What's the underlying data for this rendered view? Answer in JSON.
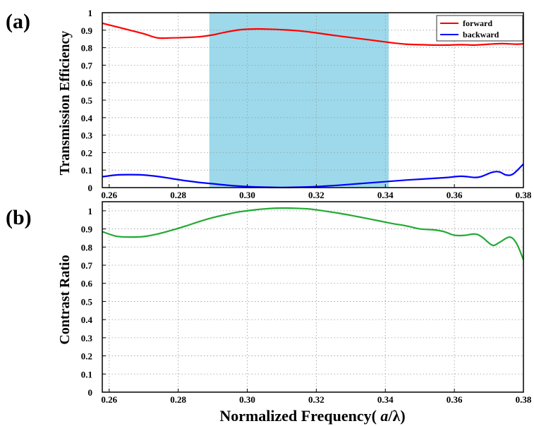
{
  "chart_data": [
    {
      "type": "line",
      "panel_label": "(a)",
      "title": "",
      "xlabel": "",
      "ylabel": "Transmission Efficiency",
      "xlim": [
        0.258,
        0.38
      ],
      "ylim": [
        0,
        1
      ],
      "grid": true,
      "legend": "top-right",
      "xticks": [
        0.26,
        0.28,
        0.3,
        0.32,
        0.34,
        0.36,
        0.38
      ],
      "xtick_labels": [
        "0.26",
        "0.28",
        "0.30",
        "0.32",
        "0.34",
        "0.36",
        "0.38"
      ],
      "yticks": [
        0,
        0.1,
        0.2,
        0.3,
        0.4,
        0.5,
        0.6,
        0.7,
        0.8,
        0.9,
        1
      ],
      "ytick_labels": [
        "0",
        "0.1",
        "0.2",
        "0.3",
        "0.4",
        "0.5",
        "0.6",
        "0.7",
        "0.8",
        "0.9",
        "1"
      ],
      "shaded_band": {
        "x_start": 0.289,
        "x_end": 0.341,
        "color": "#9dd9ea"
      },
      "series": [
        {
          "name": "forward",
          "color": "#ff0000",
          "x": [
            0.258,
            0.262,
            0.266,
            0.27,
            0.274,
            0.278,
            0.282,
            0.286,
            0.29,
            0.294,
            0.298,
            0.302,
            0.306,
            0.31,
            0.314,
            0.318,
            0.322,
            0.326,
            0.33,
            0.334,
            0.338,
            0.342,
            0.346,
            0.35,
            0.354,
            0.358,
            0.362,
            0.366,
            0.37,
            0.374,
            0.378,
            0.38
          ],
          "y": [
            0.94,
            0.92,
            0.9,
            0.88,
            0.856,
            0.856,
            0.858,
            0.862,
            0.873,
            0.89,
            0.903,
            0.907,
            0.906,
            0.903,
            0.898,
            0.89,
            0.879,
            0.868,
            0.858,
            0.848,
            0.838,
            0.828,
            0.82,
            0.817,
            0.815,
            0.815,
            0.817,
            0.815,
            0.82,
            0.823,
            0.82,
            0.822
          ]
        },
        {
          "name": "backward",
          "color": "#0000ff",
          "x": [
            0.258,
            0.262,
            0.266,
            0.27,
            0.274,
            0.278,
            0.282,
            0.286,
            0.29,
            0.294,
            0.298,
            0.302,
            0.306,
            0.31,
            0.314,
            0.318,
            0.322,
            0.326,
            0.33,
            0.334,
            0.338,
            0.342,
            0.346,
            0.35,
            0.354,
            0.358,
            0.362,
            0.366,
            0.368,
            0.371,
            0.373,
            0.375,
            0.377,
            0.38
          ],
          "y": [
            0.062,
            0.072,
            0.074,
            0.072,
            0.064,
            0.052,
            0.04,
            0.03,
            0.022,
            0.014,
            0.008,
            0.004,
            0.002,
            0.001,
            0.002,
            0.004,
            0.008,
            0.013,
            0.019,
            0.025,
            0.031,
            0.037,
            0.043,
            0.048,
            0.053,
            0.058,
            0.065,
            0.058,
            0.065,
            0.088,
            0.09,
            0.072,
            0.078,
            0.135
          ]
        }
      ]
    },
    {
      "type": "line",
      "panel_label": "(b)",
      "title": "",
      "xlabel": "Normalized Frequency(a/λ)",
      "ylabel": "Contrast Ratio",
      "xlim": [
        0.258,
        0.38
      ],
      "ylim": [
        0,
        1.05
      ],
      "grid": true,
      "legend": "none",
      "xticks": [
        0.26,
        0.28,
        0.3,
        0.32,
        0.34,
        0.36,
        0.38
      ],
      "xtick_labels": [
        "0.26",
        "0.28",
        "0.30",
        "0.32",
        "0.34",
        "0.36",
        "0.38"
      ],
      "yticks": [
        0,
        0.1,
        0.2,
        0.3,
        0.4,
        0.5,
        0.6,
        0.7,
        0.8,
        0.9,
        1
      ],
      "ytick_labels": [
        "0",
        "0.1",
        "0.2",
        "0.3",
        "0.4",
        "0.5",
        "0.6",
        "0.7",
        "0.8",
        "0.9",
        "1"
      ],
      "series": [
        {
          "color": "#22aa33",
          "x": [
            0.258,
            0.262,
            0.266,
            0.27,
            0.274,
            0.278,
            0.282,
            0.286,
            0.29,
            0.294,
            0.298,
            0.302,
            0.306,
            0.31,
            0.314,
            0.318,
            0.322,
            0.326,
            0.33,
            0.334,
            0.338,
            0.342,
            0.346,
            0.35,
            0.354,
            0.357,
            0.36,
            0.363,
            0.366,
            0.368,
            0.371,
            0.373,
            0.376,
            0.378,
            0.38
          ],
          "y": [
            0.885,
            0.86,
            0.855,
            0.858,
            0.872,
            0.892,
            0.915,
            0.94,
            0.962,
            0.98,
            0.995,
            1.005,
            1.012,
            1.015,
            1.014,
            1.01,
            1.0,
            0.988,
            0.975,
            0.96,
            0.945,
            0.93,
            0.917,
            0.9,
            0.895,
            0.885,
            0.865,
            0.865,
            0.872,
            0.855,
            0.81,
            0.825,
            0.855,
            0.82,
            0.73
          ]
        }
      ]
    }
  ]
}
